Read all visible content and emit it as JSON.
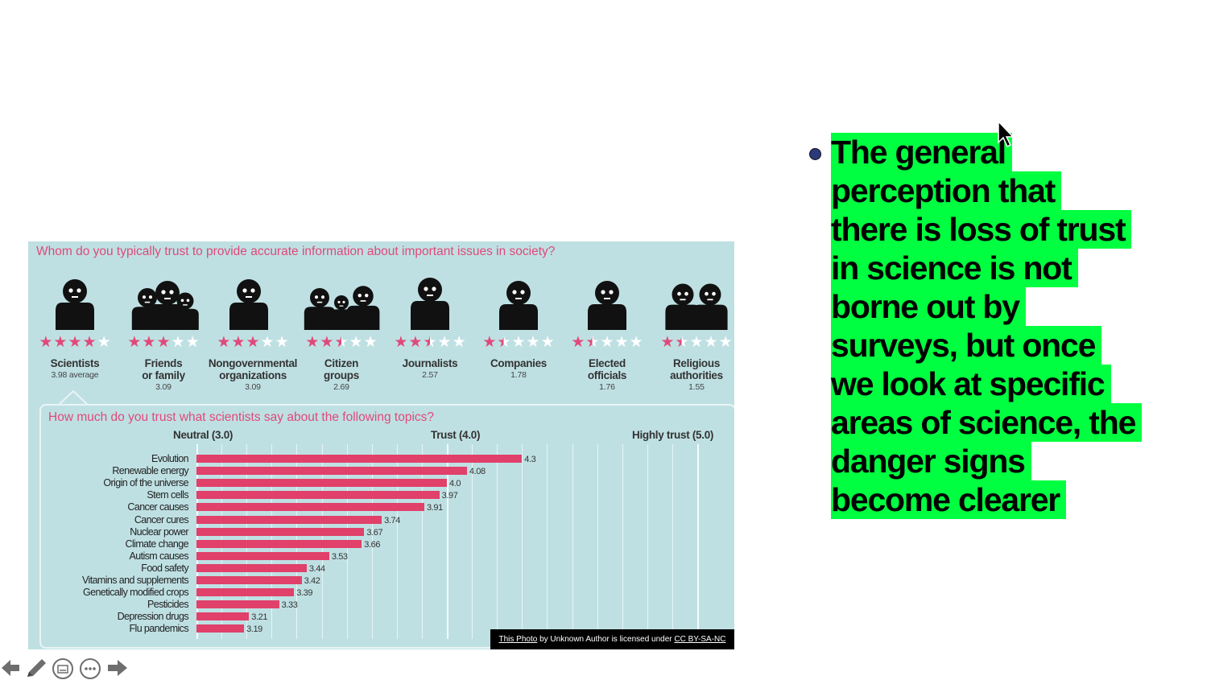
{
  "infographic": {
    "question1": "Whom do you typically trust to provide accurate information about important issues in society?",
    "groups": [
      {
        "name_line1": "Scientists",
        "name_line2": "",
        "value": "3.98 average",
        "stars": 4
      },
      {
        "name_line1": "Friends",
        "name_line2": "or family",
        "value": "3.09",
        "stars": 3
      },
      {
        "name_line1": "Nongovernmental",
        "name_line2": "organizations",
        "value": "3.09",
        "stars": 3
      },
      {
        "name_line1": "Citizen",
        "name_line2": "groups",
        "value": "2.69",
        "stars": 2.5
      },
      {
        "name_line1": "Journalists",
        "name_line2": "",
        "value": "2.57",
        "stars": 2.5
      },
      {
        "name_line1": "Companies",
        "name_line2": "",
        "value": "1.78",
        "stars": 1.5
      },
      {
        "name_line1": "Elected",
        "name_line2": "officials",
        "value": "1.76",
        "stars": 1.5
      },
      {
        "name_line1": "Religious",
        "name_line2": "authorities",
        "value": "1.55",
        "stars": 1.5
      }
    ],
    "question2": "How much do you trust what scientists say about the following topics?",
    "levels": {
      "neutral": "Neutral (3.0)",
      "trust": "Trust (4.0)",
      "high": "Highly trust (5.0)"
    },
    "credit": {
      "photo": "This Photo",
      "middle": " by Unknown Author is licensed under ",
      "license": "CC BY-SA-NC"
    }
  },
  "chart_data": {
    "type": "bar",
    "title": "How much do you trust what scientists say about the following topics?",
    "xlim": [
      3.0,
      5.0
    ],
    "categories": [
      "Evolution",
      "Renewable energy",
      "Origin of the universe",
      "Stem cells",
      "Cancer causes",
      "Cancer cures",
      "Nuclear power",
      "Climate change",
      "Autism causes",
      "Food safety",
      "Vitamins and supplements",
      "Genetically modified crops",
      "Pesticides",
      "Depression drugs",
      "Flu pandemics"
    ],
    "values": [
      4.3,
      4.08,
      4.0,
      3.97,
      3.91,
      3.74,
      3.67,
      3.66,
      3.53,
      3.44,
      3.42,
      3.39,
      3.33,
      3.21,
      3.19
    ],
    "value_labels": [
      "4.3",
      "4.08",
      "4.0",
      "3.97",
      "3.91",
      "3.74",
      "3.67",
      "3.66",
      "3.53",
      "3.44",
      "3.42",
      "3.39",
      "3.33",
      "3.21",
      "3.19"
    ],
    "bar_color": "#e0406a"
  },
  "bullet": {
    "lines": [
      "The general",
      "perception that",
      "there is loss of trust",
      "in science is not",
      "borne out by",
      "surveys, but once",
      "we look at specific",
      "areas of science, the",
      "danger signs",
      "become clearer"
    ],
    "highlight_color": "#00ff40"
  },
  "toolbar": {
    "icons": [
      "back-arrow-icon",
      "pen-icon",
      "subtitles-icon",
      "more-options-icon",
      "forward-arrow-icon"
    ]
  }
}
